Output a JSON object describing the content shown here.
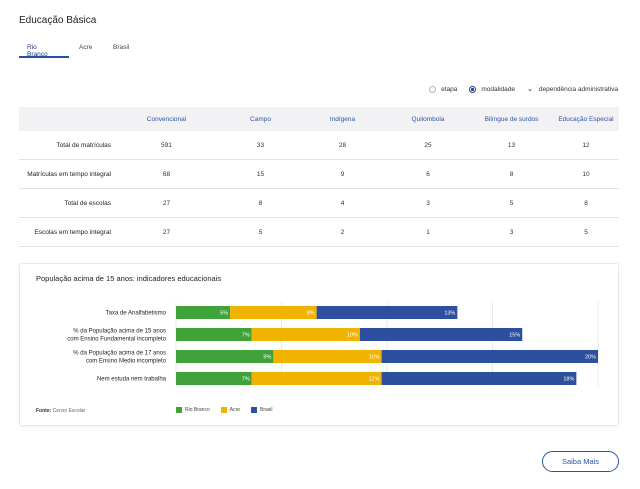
{
  "page": {
    "title": "Educação Básica"
  },
  "tabs": [
    {
      "label": "Rio Branco",
      "active": true
    },
    {
      "label": "Acre",
      "active": false
    },
    {
      "label": "Brasil",
      "active": false
    }
  ],
  "filters": {
    "etapa_label": "etapa",
    "modalidade_label": "modalidade",
    "selected": "modalidade",
    "dependencia_label": "dependência administrativa"
  },
  "table": {
    "columns": [
      "Convencional",
      "Campo",
      "Indígena",
      "Quilombola",
      "Bilíngue de surdos",
      "Educação Especial"
    ],
    "rows": [
      {
        "label": "Total de matrículas",
        "values": [
          "591",
          "33",
          "28",
          "25",
          "13",
          "12"
        ]
      },
      {
        "label": "Matrículas em tempo integral",
        "values": [
          "68",
          "15",
          "9",
          "6",
          "8",
          "10"
        ]
      },
      {
        "label": "Total de escolas",
        "values": [
          "27",
          "8",
          "4",
          "3",
          "5",
          "8"
        ]
      },
      {
        "label": "Escolas em tempo integral",
        "values": [
          "27",
          "5",
          "2",
          "1",
          "3",
          "5"
        ]
      }
    ]
  },
  "indicators": {
    "title": "População acima de 15 anos: indicadores educacionais",
    "source_label": "Fonte:",
    "source_value": "Censo Escolar",
    "chart_data": {
      "type": "bar",
      "stacked": true,
      "orientation": "horizontal",
      "categories": [
        [
          "Taxa de Analfabetismo"
        ],
        [
          "% da População acima de 15 anos",
          "com Ensino Fundamental incompleto"
        ],
        [
          "% da População acima de 17 anos",
          "com Ensino Medio incompleto"
        ],
        [
          "Nem estuda nem trabalha"
        ]
      ],
      "series": [
        {
          "name": "Rio Branco",
          "color": "#3fa33a",
          "values": [
            5,
            7,
            9,
            7
          ],
          "labels": [
            "5%",
            "7%",
            "9%",
            "7%"
          ]
        },
        {
          "name": "Acre",
          "color": "#f0b400",
          "values": [
            8,
            10,
            10,
            12
          ],
          "labels": [
            "8%",
            "10%",
            "10%",
            "12%"
          ]
        },
        {
          "name": "Brasil",
          "color": "#2c4f9e",
          "values": [
            13,
            15,
            20,
            18
          ],
          "labels": [
            "13%",
            "15%",
            "20%",
            "18%"
          ]
        }
      ],
      "xlim": [
        0,
        39
      ],
      "grid": true,
      "legend_position": "bottom"
    }
  },
  "actions": {
    "more_label": "Saiba Mais"
  }
}
